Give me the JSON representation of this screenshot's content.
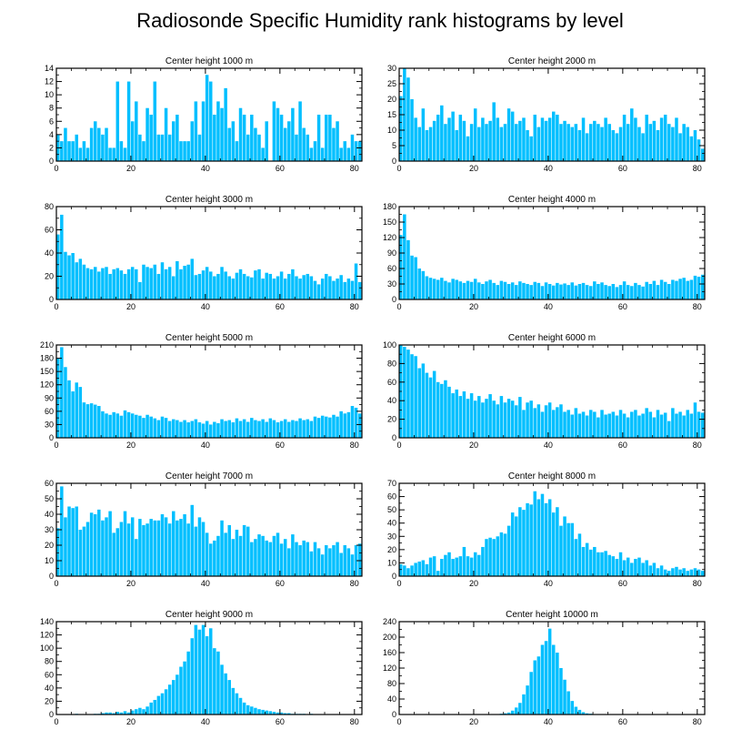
{
  "figure": {
    "title": "Radiosonde Specific Humidity rank histograms by level",
    "bar_color": "#00bfff"
  },
  "chart_data": [
    {
      "type": "bar",
      "title": "Center height 1000 m",
      "xlim": [
        0,
        82
      ],
      "ylim": [
        0,
        14
      ],
      "xticks": [
        0,
        20,
        40,
        60,
        80
      ],
      "yticks": [
        0,
        2,
        4,
        6,
        8,
        10,
        12,
        14
      ],
      "values": [
        4,
        3,
        5,
        3,
        3,
        4,
        2,
        3,
        2,
        5,
        6,
        5,
        4,
        5,
        2,
        2,
        12,
        3,
        2,
        12,
        6,
        9,
        4,
        3,
        8,
        7,
        12,
        4,
        4,
        8,
        4,
        6,
        7,
        3,
        3,
        3,
        6,
        9,
        4,
        9,
        13,
        12,
        7,
        9,
        8,
        11,
        5,
        6,
        3,
        8,
        7,
        4,
        7,
        5,
        4,
        2,
        6,
        0,
        9,
        8,
        7,
        5,
        6,
        8,
        4,
        9,
        5,
        4,
        2,
        3,
        7,
        2,
        7,
        7,
        5,
        6,
        2,
        3,
        2,
        4,
        3,
        3
      ]
    },
    {
      "type": "bar",
      "title": "Center height 2000 m",
      "xlim": [
        0,
        82
      ],
      "ylim": [
        0,
        30
      ],
      "xticks": [
        0,
        20,
        40,
        60,
        80
      ],
      "yticks": [
        0,
        5,
        10,
        15,
        20,
        25,
        30
      ],
      "values": [
        21,
        30,
        27,
        20,
        14,
        11,
        17,
        10,
        11,
        13,
        15,
        18,
        12,
        14,
        16,
        10,
        15,
        13,
        8,
        12,
        17,
        11,
        14,
        12,
        13,
        19,
        14,
        11,
        12,
        17,
        16,
        12,
        13,
        14,
        10,
        8,
        15,
        11,
        14,
        13,
        14,
        16,
        15,
        12,
        13,
        12,
        11,
        12,
        10,
        14,
        9,
        12,
        13,
        12,
        11,
        14,
        12,
        10,
        9,
        11,
        15,
        12,
        17,
        14,
        11,
        9,
        15,
        12,
        13,
        10,
        14,
        15,
        12,
        11,
        14,
        9,
        12,
        11,
        8,
        10,
        7,
        4
      ]
    },
    {
      "type": "bar",
      "title": "Center height 3000 m",
      "xlim": [
        0,
        82
      ],
      "ylim": [
        0,
        80
      ],
      "xticks": [
        0,
        20,
        40,
        60,
        80
      ],
      "yticks": [
        0,
        20,
        40,
        60,
        80
      ],
      "values": [
        56,
        73,
        41,
        38,
        40,
        32,
        35,
        30,
        27,
        26,
        28,
        24,
        27,
        28,
        22,
        26,
        27,
        25,
        22,
        26,
        28,
        26,
        15,
        30,
        28,
        27,
        30,
        22,
        32,
        26,
        28,
        20,
        33,
        26,
        29,
        30,
        35,
        21,
        22,
        25,
        28,
        24,
        20,
        22,
        28,
        24,
        20,
        18,
        23,
        26,
        22,
        20,
        19,
        25,
        26,
        18,
        23,
        22,
        18,
        20,
        24,
        18,
        22,
        26,
        20,
        18,
        21,
        22,
        20,
        16,
        13,
        18,
        22,
        20,
        16,
        18,
        21,
        15,
        18,
        16,
        31,
        15
      ]
    },
    {
      "type": "bar",
      "title": "Center height 4000 m",
      "xlim": [
        0,
        82
      ],
      "ylim": [
        0,
        180
      ],
      "xticks": [
        0,
        20,
        40,
        60,
        80
      ],
      "yticks": [
        0,
        30,
        60,
        90,
        120,
        150,
        180
      ],
      "values": [
        125,
        165,
        115,
        85,
        82,
        60,
        55,
        45,
        42,
        40,
        38,
        42,
        36,
        33,
        40,
        38,
        35,
        32,
        36,
        34,
        40,
        33,
        30,
        35,
        38,
        32,
        28,
        36,
        34,
        30,
        33,
        28,
        35,
        32,
        30,
        28,
        34,
        32,
        26,
        33,
        30,
        27,
        32,
        29,
        31,
        28,
        33,
        27,
        30,
        32,
        28,
        26,
        35,
        30,
        33,
        28,
        26,
        30,
        24,
        28,
        35,
        28,
        26,
        32,
        28,
        25,
        34,
        30,
        36,
        28,
        38,
        34,
        30,
        38,
        36,
        40,
        42,
        36,
        38,
        46,
        44,
        48
      ]
    },
    {
      "type": "bar",
      "title": "Center height 5000 m",
      "xlim": [
        0,
        82
      ],
      "ylim": [
        0,
        210
      ],
      "xticks": [
        0,
        20,
        40,
        60,
        80
      ],
      "yticks": [
        0,
        30,
        60,
        90,
        120,
        150,
        180,
        210
      ],
      "values": [
        180,
        205,
        160,
        130,
        105,
        125,
        115,
        80,
        76,
        78,
        75,
        72,
        60,
        55,
        52,
        58,
        55,
        50,
        62,
        58,
        55,
        52,
        50,
        45,
        52,
        48,
        44,
        40,
        48,
        45,
        38,
        42,
        40,
        36,
        40,
        35,
        38,
        42,
        35,
        32,
        38,
        30,
        36,
        33,
        42,
        38,
        40,
        35,
        44,
        38,
        42,
        36,
        45,
        40,
        38,
        42,
        36,
        44,
        40,
        35,
        38,
        42,
        36,
        40,
        38,
        44,
        40,
        42,
        38,
        48,
        45,
        50,
        48,
        46,
        52,
        48,
        60,
        55,
        58,
        72,
        68,
        55
      ]
    },
    {
      "type": "bar",
      "title": "Center height 6000 m",
      "xlim": [
        0,
        82
      ],
      "ylim": [
        0,
        100
      ],
      "xticks": [
        0,
        20,
        40,
        60,
        80
      ],
      "yticks": [
        0,
        20,
        40,
        60,
        80,
        100
      ],
      "values": [
        100,
        98,
        95,
        90,
        88,
        75,
        80,
        70,
        65,
        72,
        60,
        58,
        62,
        55,
        48,
        52,
        45,
        50,
        42,
        48,
        40,
        45,
        38,
        42,
        47,
        40,
        36,
        45,
        38,
        42,
        40,
        35,
        44,
        30,
        38,
        40,
        32,
        36,
        28,
        35,
        38,
        30,
        33,
        36,
        28,
        30,
        25,
        32,
        26,
        28,
        24,
        30,
        28,
        22,
        30,
        25,
        26,
        28,
        24,
        30,
        26,
        22,
        28,
        30,
        24,
        26,
        32,
        28,
        22,
        30,
        25,
        27,
        18,
        32,
        26,
        28,
        24,
        30,
        26,
        38,
        28,
        27
      ]
    },
    {
      "type": "bar",
      "title": "Center height 7000 m",
      "xlim": [
        0,
        82
      ],
      "ylim": [
        0,
        60
      ],
      "xticks": [
        0,
        20,
        40,
        60,
        80
      ],
      "yticks": [
        0,
        10,
        20,
        30,
        40,
        50,
        60
      ],
      "values": [
        31,
        58,
        38,
        45,
        44,
        45,
        30,
        32,
        35,
        41,
        40,
        43,
        36,
        38,
        42,
        28,
        31,
        35,
        42,
        34,
        38,
        24,
        37,
        33,
        34,
        37,
        36,
        36,
        40,
        38,
        34,
        42,
        36,
        37,
        40,
        34,
        46,
        32,
        38,
        35,
        28,
        21,
        23,
        26,
        36,
        28,
        33,
        24,
        30,
        26,
        33,
        32,
        22,
        24,
        27,
        26,
        23,
        22,
        26,
        28,
        21,
        24,
        18,
        27,
        22,
        20,
        23,
        22,
        16,
        22,
        18,
        14,
        20,
        18,
        20,
        22,
        15,
        20,
        18,
        14,
        20,
        21
      ]
    },
    {
      "type": "bar",
      "title": "Center height 8000 m",
      "xlim": [
        0,
        82
      ],
      "ylim": [
        0,
        70
      ],
      "xticks": [
        0,
        20,
        40,
        60,
        80
      ],
      "yticks": [
        0,
        10,
        20,
        30,
        40,
        50,
        60,
        70
      ],
      "values": [
        9,
        8,
        6,
        8,
        10,
        11,
        12,
        9,
        14,
        15,
        4,
        13,
        16,
        18,
        13,
        14,
        15,
        22,
        15,
        14,
        18,
        16,
        22,
        28,
        29,
        28,
        30,
        33,
        32,
        38,
        48,
        45,
        52,
        50,
        55,
        54,
        64,
        58,
        62,
        55,
        58,
        48,
        52,
        38,
        45,
        40,
        40,
        28,
        32,
        22,
        25,
        20,
        22,
        18,
        18,
        19,
        16,
        15,
        13,
        18,
        12,
        14,
        10,
        13,
        14,
        10,
        12,
        8,
        10,
        6,
        8,
        5,
        4,
        6,
        7,
        5,
        6,
        4,
        5,
        6,
        5,
        4
      ]
    },
    {
      "type": "bar",
      "title": "Center height 9000 m",
      "xlim": [
        0,
        82
      ],
      "ylim": [
        0,
        140
      ],
      "xticks": [
        0,
        20,
        40,
        60,
        80
      ],
      "yticks": [
        0,
        20,
        40,
        60,
        80,
        100,
        120,
        140
      ],
      "values": [
        0,
        0,
        0,
        0,
        0,
        1,
        0,
        0,
        0,
        0,
        1,
        1,
        2,
        3,
        3,
        2,
        4,
        3,
        5,
        3,
        6,
        8,
        10,
        8,
        12,
        18,
        22,
        28,
        32,
        38,
        45,
        52,
        60,
        72,
        80,
        95,
        115,
        135,
        128,
        135,
        118,
        130,
        100,
        95,
        75,
        62,
        52,
        40,
        32,
        25,
        18,
        14,
        12,
        10,
        8,
        7,
        6,
        5,
        4,
        3,
        3,
        2,
        2,
        1,
        1,
        1,
        1,
        0,
        1,
        0,
        0,
        0,
        0,
        0,
        0,
        0,
        0,
        0,
        0,
        0,
        0,
        0
      ]
    },
    {
      "type": "bar",
      "title": "Center height 10000 m",
      "xlim": [
        0,
        82
      ],
      "ylim": [
        0,
        240
      ],
      "xticks": [
        0,
        20,
        40,
        60,
        80
      ],
      "yticks": [
        0,
        40,
        80,
        120,
        160,
        200,
        240
      ],
      "values": [
        0,
        0,
        0,
        0,
        0,
        0,
        0,
        0,
        0,
        0,
        0,
        0,
        0,
        0,
        0,
        0,
        0,
        0,
        0,
        0,
        0,
        0,
        0,
        0,
        0,
        0,
        1,
        2,
        3,
        5,
        10,
        18,
        30,
        52,
        75,
        110,
        140,
        150,
        180,
        190,
        222,
        180,
        160,
        120,
        90,
        60,
        35,
        20,
        12,
        6,
        3,
        2,
        1,
        0,
        0,
        0,
        0,
        0,
        0,
        0,
        0,
        0,
        0,
        0,
        0,
        0,
        0,
        0,
        0,
        0,
        0,
        0,
        0,
        0,
        0,
        0,
        0,
        0,
        0,
        0,
        0,
        0
      ]
    }
  ]
}
